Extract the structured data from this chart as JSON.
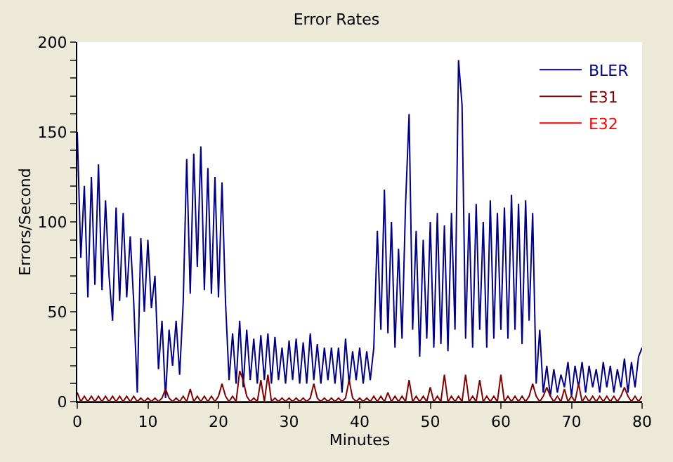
{
  "chart_data": {
    "type": "line",
    "title": "Error Rates",
    "xlabel": "Minutes",
    "ylabel": "Errors/Second",
    "x": [
      0,
      0.5,
      1,
      1.5,
      2,
      2.5,
      3,
      3.5,
      4,
      4.5,
      5,
      5.5,
      6,
      6.5,
      7,
      7.5,
      8,
      8.5,
      9,
      9.5,
      10,
      10.5,
      11,
      11.5,
      12,
      12.5,
      13,
      13.5,
      14,
      14.5,
      15,
      15.5,
      16,
      16.5,
      17,
      17.5,
      18,
      18.5,
      19,
      19.5,
      20,
      20.5,
      21,
      21.5,
      22,
      22.5,
      23,
      23.5,
      24,
      24.5,
      25,
      25.5,
      26,
      26.5,
      27,
      27.5,
      28,
      28.5,
      29,
      29.5,
      30,
      30.5,
      31,
      31.5,
      32,
      32.5,
      33,
      33.5,
      34,
      34.5,
      35,
      35.5,
      36,
      36.5,
      37,
      37.5,
      38,
      38.5,
      39,
      39.5,
      40,
      40.5,
      41,
      41.5,
      42,
      42.5,
      43,
      43.5,
      44,
      44.5,
      45,
      45.5,
      46,
      46.5,
      47,
      47.5,
      48,
      48.5,
      49,
      49.5,
      50,
      50.5,
      51,
      51.5,
      52,
      52.5,
      53,
      53.5,
      54,
      54.5,
      55,
      55.5,
      56,
      56.5,
      57,
      57.5,
      58,
      58.5,
      59,
      59.5,
      60,
      60.5,
      61,
      61.5,
      62,
      62.5,
      63,
      63.5,
      64,
      64.5,
      65,
      65.5,
      66,
      66.5,
      67,
      67.5,
      68,
      68.5,
      69,
      69.5,
      70,
      70.5,
      71,
      71.5,
      72,
      72.5,
      73,
      73.5,
      74,
      74.5,
      75,
      75.5,
      76,
      76.5,
      77,
      77.5,
      78,
      78.5,
      79,
      79.5,
      80
    ],
    "series": [
      {
        "name": "BLER",
        "color": "#000080",
        "values": [
          150,
          80,
          120,
          58,
          125,
          65,
          132,
          62,
          112,
          70,
          45,
          108,
          56,
          105,
          58,
          92,
          55,
          5,
          91,
          50,
          90,
          52,
          70,
          18,
          45,
          2,
          40,
          20,
          45,
          15,
          55,
          135,
          60,
          138,
          75,
          142,
          62,
          130,
          60,
          125,
          58,
          122,
          55,
          12,
          38,
          10,
          45,
          8,
          40,
          12,
          35,
          10,
          37,
          12,
          38,
          10,
          36,
          12,
          30,
          10,
          34,
          12,
          35,
          10,
          33,
          10,
          38,
          12,
          32,
          10,
          30,
          12,
          30,
          10,
          30,
          5,
          35,
          10,
          28,
          12,
          30,
          10,
          28,
          12,
          30,
          95,
          40,
          118,
          38,
          100,
          30,
          85,
          35,
          110,
          160,
          40,
          95,
          25,
          90,
          35,
          100,
          30,
          105,
          32,
          98,
          28,
          105,
          40,
          190,
          165,
          35,
          105,
          30,
          110,
          40,
          100,
          30,
          112,
          35,
          105,
          40,
          108,
          35,
          115,
          40,
          110,
          32,
          112,
          45,
          105,
          10,
          40,
          5,
          20,
          3,
          18,
          5,
          15,
          8,
          22,
          3,
          20,
          8,
          22,
          5,
          20,
          8,
          18,
          5,
          22,
          8,
          20,
          5,
          18,
          8,
          24,
          5,
          22,
          8,
          25,
          30
        ]
      },
      {
        "name": "E31",
        "color": "#800000",
        "values": [
          5,
          0,
          3,
          0,
          3,
          0,
          3,
          0,
          3,
          0,
          3,
          0,
          3,
          0,
          3,
          0,
          3,
          0,
          2,
          0,
          2,
          0,
          2,
          0,
          2,
          7,
          2,
          0,
          2,
          0,
          3,
          0,
          7,
          0,
          3,
          0,
          3,
          0,
          3,
          0,
          3,
          10,
          3,
          0,
          3,
          0,
          17,
          12,
          3,
          0,
          2,
          0,
          12,
          0,
          15,
          0,
          2,
          0,
          2,
          0,
          2,
          0,
          2,
          0,
          2,
          0,
          2,
          10,
          2,
          0,
          2,
          0,
          2,
          0,
          2,
          0,
          2,
          12,
          2,
          0,
          2,
          0,
          2,
          0,
          3,
          0,
          3,
          0,
          5,
          0,
          3,
          0,
          3,
          0,
          12,
          0,
          3,
          0,
          3,
          0,
          8,
          0,
          3,
          0,
          15,
          0,
          3,
          0,
          3,
          0,
          15,
          0,
          3,
          0,
          12,
          0,
          3,
          0,
          3,
          0,
          15,
          0,
          3,
          0,
          3,
          0,
          3,
          0,
          3,
          10,
          3,
          0,
          3,
          8,
          3,
          0,
          3,
          0,
          7,
          0,
          3,
          0,
          10,
          0,
          3,
          0,
          3,
          0,
          3,
          0,
          3,
          0,
          3,
          0,
          3,
          8,
          3,
          0,
          3,
          0,
          3
        ]
      },
      {
        "name": "E32",
        "color": "#ff0000",
        "x": [
          0,
          80
        ],
        "values": [
          0,
          0
        ]
      }
    ],
    "xlim": [
      0,
      80
    ],
    "xticks": [
      0,
      10,
      20,
      30,
      40,
      50,
      60,
      70,
      80
    ],
    "ylim": [
      0,
      200
    ],
    "yticks": [
      0,
      {
        "value": 10,
        "label": null
      },
      {
        "value": 20,
        "label": null
      },
      {
        "value": 30,
        "label": null
      },
      {
        "value": 40,
        "label": null
      },
      50,
      {
        "value": 60,
        "label": null
      },
      {
        "value": 70,
        "label": null
      },
      {
        "value": 80,
        "label": null
      },
      {
        "value": 90,
        "label": null
      },
      100,
      {
        "value": 110,
        "label": null
      },
      {
        "value": 120,
        "label": null
      },
      {
        "value": 130,
        "label": null
      },
      {
        "value": 140,
        "label": null
      },
      150,
      {
        "value": 160,
        "label": null
      },
      {
        "value": 170,
        "label": null
      },
      {
        "value": 180,
        "label": null
      },
      {
        "value": 190,
        "label": null
      },
      200
    ],
    "legend": "top right",
    "marker": "none",
    "line_style": "solid"
  }
}
